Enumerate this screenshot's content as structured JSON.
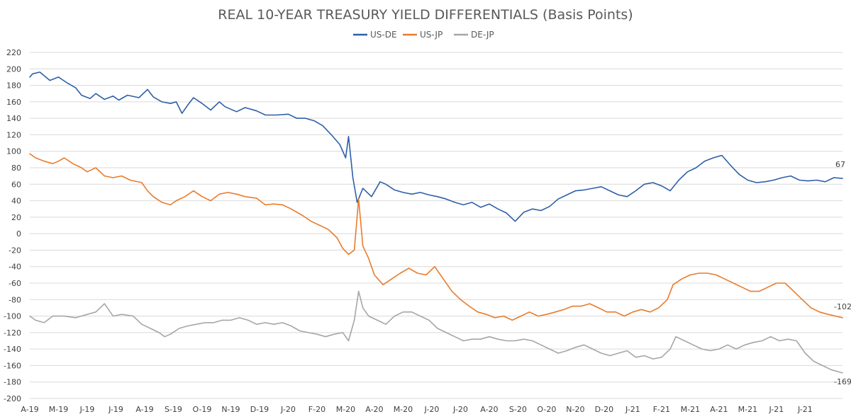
{
  "chart_data": {
    "type": "line",
    "title": "REAL 10-YEAR TREASURY YIELD DIFFERENTIALS (Basis Points)",
    "legend_position": "top-center",
    "grid": true,
    "ylim": [
      -200,
      220
    ],
    "y_ticks": [
      220,
      200,
      180,
      160,
      140,
      120,
      100,
      80,
      60,
      40,
      20,
      0,
      -20,
      -40,
      -60,
      -80,
      -100,
      -120,
      -140,
      -160,
      -180,
      -200
    ],
    "x_tick_labels": [
      "A-19",
      "M-19",
      "J-19",
      "J-19",
      "A-19",
      "S-19",
      "O-19",
      "N-19",
      "D-19",
      "J-20",
      "F-20",
      "M-20",
      "A-20",
      "M-20",
      "J-20",
      "J-20",
      "A-20",
      "S-20",
      "O-20",
      "N-20",
      "D-20",
      "J-21",
      "F-21",
      "M-21",
      "A-21",
      "M-21",
      "J-21",
      "J-21"
    ],
    "series": [
      {
        "name": "US-DE",
        "color": "#2e5fa8",
        "end_label": "67",
        "values": [
          [
            0,
            190
          ],
          [
            0.1,
            194
          ],
          [
            0.35,
            196
          ],
          [
            0.7,
            186
          ],
          [
            1,
            190
          ],
          [
            1.3,
            183
          ],
          [
            1.6,
            177
          ],
          [
            1.8,
            168
          ],
          [
            2.1,
            164
          ],
          [
            2.3,
            170
          ],
          [
            2.6,
            163
          ],
          [
            2.9,
            167
          ],
          [
            3.1,
            162
          ],
          [
            3.4,
            168
          ],
          [
            3.8,
            165
          ],
          [
            4.1,
            175
          ],
          [
            4.3,
            166
          ],
          [
            4.6,
            160
          ],
          [
            4.9,
            158
          ],
          [
            5.1,
            160
          ],
          [
            5.3,
            146
          ],
          [
            5.5,
            156
          ],
          [
            5.7,
            165
          ],
          [
            6,
            158
          ],
          [
            6.3,
            150
          ],
          [
            6.6,
            160
          ],
          [
            6.8,
            154
          ],
          [
            7.2,
            148
          ],
          [
            7.5,
            153
          ],
          [
            7.9,
            149
          ],
          [
            8.2,
            144
          ],
          [
            8.6,
            144
          ],
          [
            9,
            145
          ],
          [
            9.3,
            140
          ],
          [
            9.6,
            140
          ],
          [
            9.9,
            137
          ],
          [
            10.2,
            131
          ],
          [
            10.5,
            120
          ],
          [
            10.8,
            108
          ],
          [
            11,
            92
          ],
          [
            11.1,
            118
          ],
          [
            11.25,
            68
          ],
          [
            11.4,
            38
          ],
          [
            11.6,
            55
          ],
          [
            11.9,
            45
          ],
          [
            12.2,
            63
          ],
          [
            12.4,
            60
          ],
          [
            12.7,
            53
          ],
          [
            13,
            50
          ],
          [
            13.3,
            48
          ],
          [
            13.6,
            50
          ],
          [
            13.9,
            47
          ],
          [
            14.2,
            45
          ],
          [
            14.5,
            42
          ],
          [
            14.8,
            38
          ],
          [
            15.1,
            35
          ],
          [
            15.4,
            38
          ],
          [
            15.7,
            32
          ],
          [
            16,
            36
          ],
          [
            16.3,
            30
          ],
          [
            16.6,
            25
          ],
          [
            16.9,
            15
          ],
          [
            17.2,
            26
          ],
          [
            17.5,
            30
          ],
          [
            17.8,
            28
          ],
          [
            18.1,
            33
          ],
          [
            18.4,
            42
          ],
          [
            18.7,
            47
          ],
          [
            19,
            52
          ],
          [
            19.3,
            53
          ],
          [
            19.6,
            55
          ],
          [
            19.9,
            57
          ],
          [
            20.2,
            52
          ],
          [
            20.5,
            47
          ],
          [
            20.8,
            45
          ],
          [
            21.1,
            52
          ],
          [
            21.4,
            60
          ],
          [
            21.7,
            62
          ],
          [
            22,
            58
          ],
          [
            22.3,
            52
          ],
          [
            22.6,
            65
          ],
          [
            22.9,
            75
          ],
          [
            23.2,
            80
          ],
          [
            23.5,
            88
          ],
          [
            23.8,
            92
          ],
          [
            24.1,
            95
          ],
          [
            24.4,
            83
          ],
          [
            24.7,
            72
          ],
          [
            25,
            65
          ],
          [
            25.3,
            62
          ],
          [
            25.6,
            63
          ],
          [
            25.9,
            65
          ],
          [
            26.2,
            68
          ],
          [
            26.5,
            70
          ],
          [
            26.8,
            65
          ],
          [
            27.1,
            64
          ],
          [
            27.4,
            65
          ],
          [
            27.7,
            63
          ],
          [
            28,
            68
          ],
          [
            28.3,
            67
          ]
        ]
      },
      {
        "name": "US-JP",
        "color": "#e97c2b",
        "end_label": "-102",
        "values": [
          [
            0,
            97
          ],
          [
            0.2,
            92
          ],
          [
            0.5,
            88
          ],
          [
            0.8,
            85
          ],
          [
            1,
            88
          ],
          [
            1.2,
            92
          ],
          [
            1.5,
            85
          ],
          [
            1.8,
            80
          ],
          [
            2,
            75
          ],
          [
            2.3,
            80
          ],
          [
            2.6,
            70
          ],
          [
            2.9,
            68
          ],
          [
            3.2,
            70
          ],
          [
            3.5,
            65
          ],
          [
            3.9,
            62
          ],
          [
            4.1,
            52
          ],
          [
            4.3,
            45
          ],
          [
            4.6,
            38
          ],
          [
            4.9,
            35
          ],
          [
            5.1,
            40
          ],
          [
            5.4,
            45
          ],
          [
            5.7,
            52
          ],
          [
            6,
            45
          ],
          [
            6.3,
            40
          ],
          [
            6.6,
            48
          ],
          [
            6.9,
            50
          ],
          [
            7.2,
            48
          ],
          [
            7.5,
            45
          ],
          [
            7.9,
            43
          ],
          [
            8.2,
            35
          ],
          [
            8.5,
            36
          ],
          [
            8.8,
            35
          ],
          [
            9.1,
            30
          ],
          [
            9.5,
            22
          ],
          [
            9.8,
            15
          ],
          [
            10.1,
            10
          ],
          [
            10.4,
            5
          ],
          [
            10.7,
            -5
          ],
          [
            10.9,
            -18
          ],
          [
            11.1,
            -25
          ],
          [
            11.3,
            -20
          ],
          [
            11.45,
            42
          ],
          [
            11.6,
            -15
          ],
          [
            11.8,
            -30
          ],
          [
            12,
            -50
          ],
          [
            12.3,
            -62
          ],
          [
            12.6,
            -55
          ],
          [
            12.9,
            -48
          ],
          [
            13.2,
            -42
          ],
          [
            13.5,
            -48
          ],
          [
            13.8,
            -50
          ],
          [
            14.1,
            -40
          ],
          [
            14.4,
            -55
          ],
          [
            14.7,
            -70
          ],
          [
            15,
            -80
          ],
          [
            15.3,
            -88
          ],
          [
            15.6,
            -95
          ],
          [
            15.9,
            -98
          ],
          [
            16.2,
            -102
          ],
          [
            16.5,
            -100
          ],
          [
            16.8,
            -105
          ],
          [
            17.1,
            -100
          ],
          [
            17.4,
            -95
          ],
          [
            17.7,
            -100
          ],
          [
            18,
            -98
          ],
          [
            18.3,
            -95
          ],
          [
            18.6,
            -92
          ],
          [
            18.9,
            -88
          ],
          [
            19.2,
            -88
          ],
          [
            19.5,
            -85
          ],
          [
            19.8,
            -90
          ],
          [
            20.1,
            -95
          ],
          [
            20.4,
            -95
          ],
          [
            20.7,
            -100
          ],
          [
            21,
            -95
          ],
          [
            21.3,
            -92
          ],
          [
            21.6,
            -95
          ],
          [
            21.9,
            -90
          ],
          [
            22.2,
            -80
          ],
          [
            22.4,
            -62
          ],
          [
            22.7,
            -55
          ],
          [
            23,
            -50
          ],
          [
            23.3,
            -48
          ],
          [
            23.6,
            -48
          ],
          [
            23.9,
            -50
          ],
          [
            24.2,
            -55
          ],
          [
            24.5,
            -60
          ],
          [
            24.8,
            -65
          ],
          [
            25.1,
            -70
          ],
          [
            25.4,
            -70
          ],
          [
            25.7,
            -65
          ],
          [
            26,
            -60
          ],
          [
            26.3,
            -60
          ],
          [
            26.6,
            -70
          ],
          [
            26.9,
            -80
          ],
          [
            27.2,
            -90
          ],
          [
            27.5,
            -95
          ],
          [
            27.8,
            -98
          ],
          [
            28.3,
            -102
          ]
        ]
      },
      {
        "name": "DE-JP",
        "color": "#a6a6a6",
        "end_label": "-169",
        "values": [
          [
            0,
            -100
          ],
          [
            0.2,
            -105
          ],
          [
            0.5,
            -108
          ],
          [
            0.8,
            -100
          ],
          [
            1.2,
            -100
          ],
          [
            1.6,
            -102
          ],
          [
            2,
            -98
          ],
          [
            2.3,
            -95
          ],
          [
            2.6,
            -85
          ],
          [
            2.9,
            -100
          ],
          [
            3.2,
            -98
          ],
          [
            3.6,
            -100
          ],
          [
            3.9,
            -110
          ],
          [
            4.2,
            -115
          ],
          [
            4.5,
            -120
          ],
          [
            4.7,
            -125
          ],
          [
            4.9,
            -122
          ],
          [
            5.2,
            -115
          ],
          [
            5.5,
            -112
          ],
          [
            5.8,
            -110
          ],
          [
            6.1,
            -108
          ],
          [
            6.4,
            -108
          ],
          [
            6.7,
            -105
          ],
          [
            7,
            -105
          ],
          [
            7.3,
            -102
          ],
          [
            7.6,
            -105
          ],
          [
            7.9,
            -110
          ],
          [
            8.2,
            -108
          ],
          [
            8.5,
            -110
          ],
          [
            8.8,
            -108
          ],
          [
            9.1,
            -112
          ],
          [
            9.4,
            -118
          ],
          [
            9.7,
            -120
          ],
          [
            10,
            -122
          ],
          [
            10.3,
            -125
          ],
          [
            10.6,
            -122
          ],
          [
            10.9,
            -120
          ],
          [
            11.1,
            -130
          ],
          [
            11.3,
            -105
          ],
          [
            11.45,
            -70
          ],
          [
            11.6,
            -90
          ],
          [
            11.8,
            -100
          ],
          [
            12.1,
            -105
          ],
          [
            12.4,
            -110
          ],
          [
            12.7,
            -100
          ],
          [
            13,
            -95
          ],
          [
            13.3,
            -95
          ],
          [
            13.6,
            -100
          ],
          [
            13.9,
            -105
          ],
          [
            14.2,
            -115
          ],
          [
            14.5,
            -120
          ],
          [
            14.8,
            -125
          ],
          [
            15.1,
            -130
          ],
          [
            15.4,
            -128
          ],
          [
            15.7,
            -128
          ],
          [
            16,
            -125
          ],
          [
            16.3,
            -128
          ],
          [
            16.6,
            -130
          ],
          [
            16.9,
            -130
          ],
          [
            17.2,
            -128
          ],
          [
            17.5,
            -130
          ],
          [
            17.8,
            -135
          ],
          [
            18.1,
            -140
          ],
          [
            18.4,
            -145
          ],
          [
            18.7,
            -142
          ],
          [
            19,
            -138
          ],
          [
            19.3,
            -135
          ],
          [
            19.6,
            -140
          ],
          [
            19.9,
            -145
          ],
          [
            20.2,
            -148
          ],
          [
            20.5,
            -145
          ],
          [
            20.8,
            -142
          ],
          [
            21.1,
            -150
          ],
          [
            21.4,
            -148
          ],
          [
            21.7,
            -152
          ],
          [
            22,
            -150
          ],
          [
            22.3,
            -140
          ],
          [
            22.5,
            -125
          ],
          [
            22.8,
            -130
          ],
          [
            23.1,
            -135
          ],
          [
            23.4,
            -140
          ],
          [
            23.7,
            -142
          ],
          [
            24,
            -140
          ],
          [
            24.3,
            -135
          ],
          [
            24.6,
            -140
          ],
          [
            24.9,
            -135
          ],
          [
            25.2,
            -132
          ],
          [
            25.5,
            -130
          ],
          [
            25.8,
            -125
          ],
          [
            26.1,
            -130
          ],
          [
            26.4,
            -128
          ],
          [
            26.7,
            -130
          ],
          [
            27,
            -145
          ],
          [
            27.3,
            -155
          ],
          [
            27.6,
            -160
          ],
          [
            27.9,
            -165
          ],
          [
            28.3,
            -169
          ]
        ]
      }
    ]
  }
}
